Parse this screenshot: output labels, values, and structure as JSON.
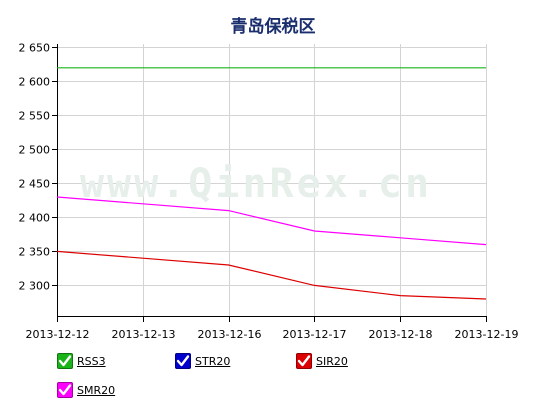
{
  "chart_data": {
    "type": "line",
    "title": "青岛保税区",
    "watermark": "www.QinRex.cn",
    "categories": [
      "2013-12-12",
      "2013-12-13",
      "2013-12-16",
      "2013-12-17",
      "2013-12-18",
      "2013-12-19"
    ],
    "y_ticks": [
      "2 300",
      "2 350",
      "2 400",
      "2 450",
      "2 500",
      "2 550",
      "2 600",
      "2 650"
    ],
    "y_tick_values": [
      2300,
      2350,
      2400,
      2450,
      2500,
      2550,
      2600,
      2650
    ],
    "ylim": [
      2255,
      2655
    ],
    "grid": true,
    "legend_position": "bottom-left",
    "series": [
      {
        "name": "RSS3",
        "color": "#1ab31a",
        "values": [
          2620,
          2620,
          2620,
          2620,
          2620,
          2620
        ]
      },
      {
        "name": "STR20",
        "color": "#0000cc",
        "values": [
          null,
          null,
          null,
          null,
          null,
          null
        ]
      },
      {
        "name": "SIR20",
        "color": "#dd0000",
        "values": [
          2350,
          2340,
          2330,
          2300,
          2285,
          2280
        ]
      },
      {
        "name": "SMR20",
        "color": "#ff00ff",
        "values": [
          2430,
          2420,
          2410,
          2380,
          2370,
          2360
        ]
      }
    ]
  }
}
